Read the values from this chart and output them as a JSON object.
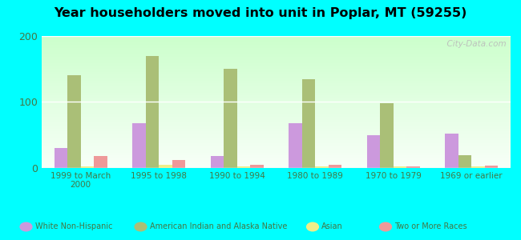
{
  "title": "Year householders moved into unit in Poplar, MT (59255)",
  "categories": [
    "1999 to March\n2000",
    "1995 to 1998",
    "1990 to 1994",
    "1980 to 1989",
    "1970 to 1979",
    "1969 or earlier"
  ],
  "series": {
    "White Non-Hispanic": [
      30,
      68,
      18,
      68,
      50,
      52
    ],
    "American Indian and Alaska Native": [
      140,
      170,
      150,
      135,
      98,
      20
    ],
    "Asian": [
      2,
      5,
      3,
      3,
      2,
      2
    ],
    "Two or More Races": [
      18,
      12,
      5,
      5,
      3,
      4
    ]
  },
  "colors": {
    "White Non-Hispanic": "#cc99dd",
    "American Indian and Alaska Native": "#aabf77",
    "Asian": "#eeee88",
    "Two or More Races": "#ee9999"
  },
  "ylim": [
    0,
    200
  ],
  "yticks": [
    0,
    100,
    200
  ],
  "background_color": "#00ffff",
  "plot_bg_start": "#e8ffe8",
  "plot_bg_end": "#ffffff",
  "watermark": "  City-Data.com"
}
